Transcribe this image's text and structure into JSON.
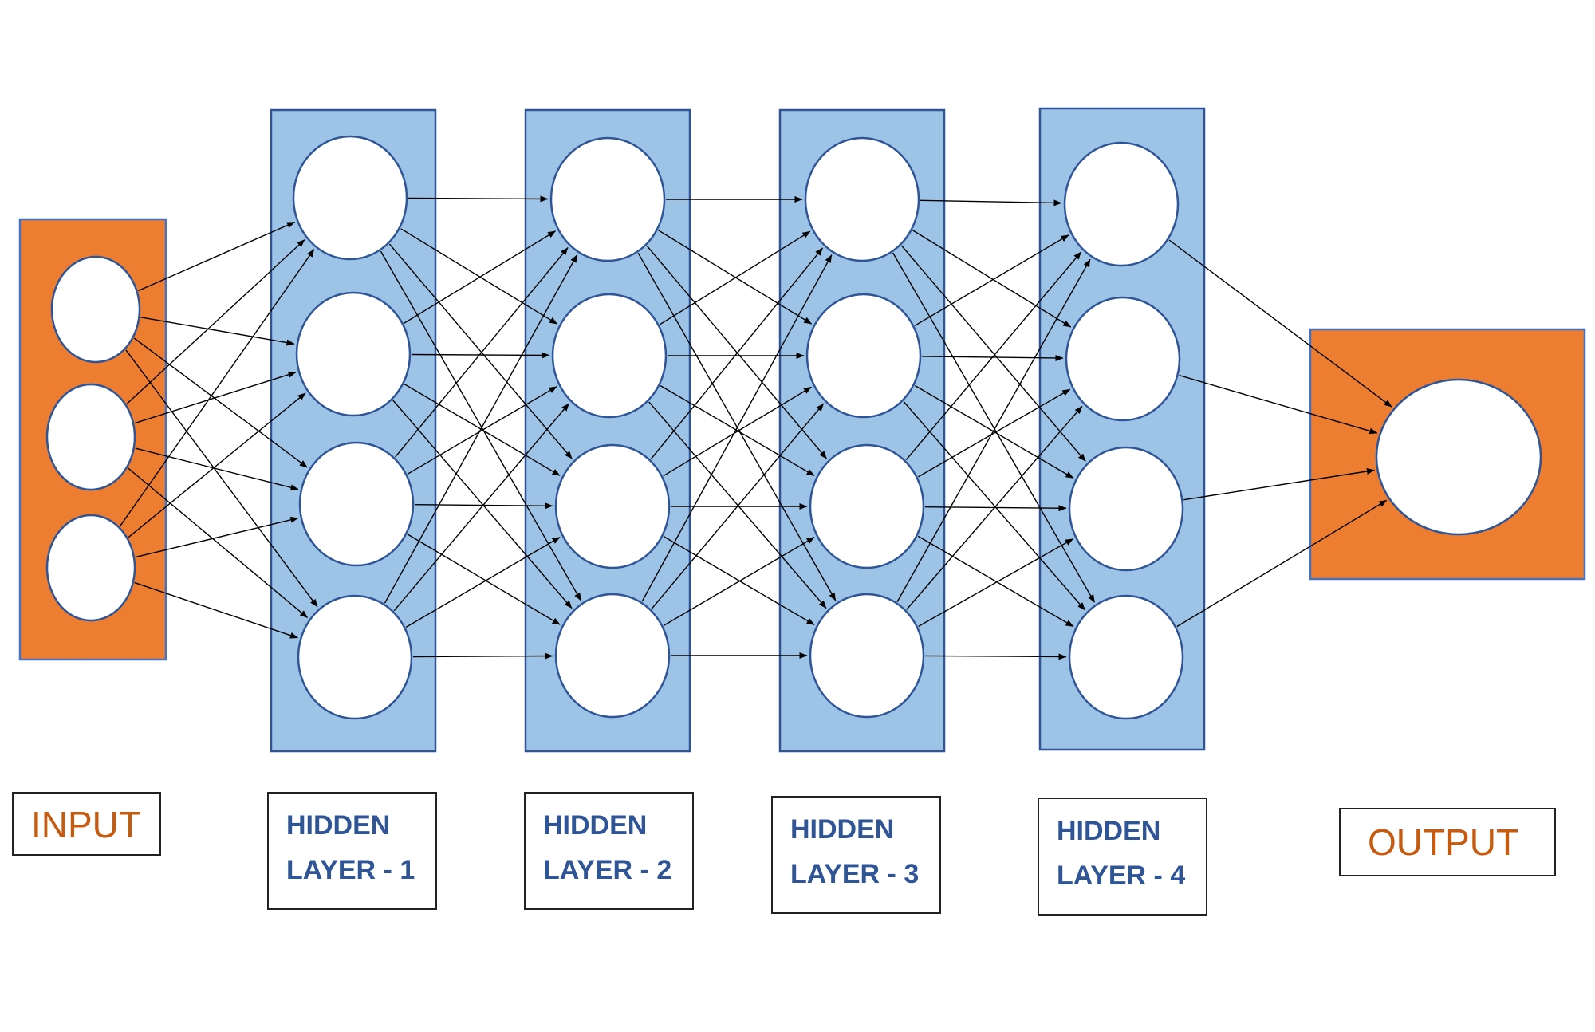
{
  "colors": {
    "io_fill": "#ED7D31",
    "io_border": "#4472C4",
    "hidden_fill": "#9DC3E6",
    "hidden_border": "#2F5597",
    "node_fill": "#FFFFFF",
    "node_border": "#2F5597",
    "edge": "#000000",
    "io_label": "#C55A11",
    "hidden_label": "#2F5597"
  },
  "network": {
    "type": "fully-connected feed-forward",
    "layers": [
      {
        "kind": "input",
        "nodes": 3
      },
      {
        "kind": "hidden",
        "nodes": 4
      },
      {
        "kind": "hidden",
        "nodes": 4
      },
      {
        "kind": "hidden",
        "nodes": 4
      },
      {
        "kind": "hidden",
        "nodes": 4
      },
      {
        "kind": "output",
        "nodes": 1
      }
    ]
  },
  "labels": {
    "input": "INPUT",
    "hidden_1_line1": "HIDDEN",
    "hidden_1_line2": "LAYER - 1",
    "hidden_2_line1": "HIDDEN",
    "hidden_2_line2": "LAYER - 2",
    "hidden_3_line1": "HIDDEN",
    "hidden_3_line2": "LAYER - 3",
    "hidden_4_line1": "HIDDEN",
    "hidden_4_line2": "LAYER - 4",
    "output": "OUTPUT"
  }
}
